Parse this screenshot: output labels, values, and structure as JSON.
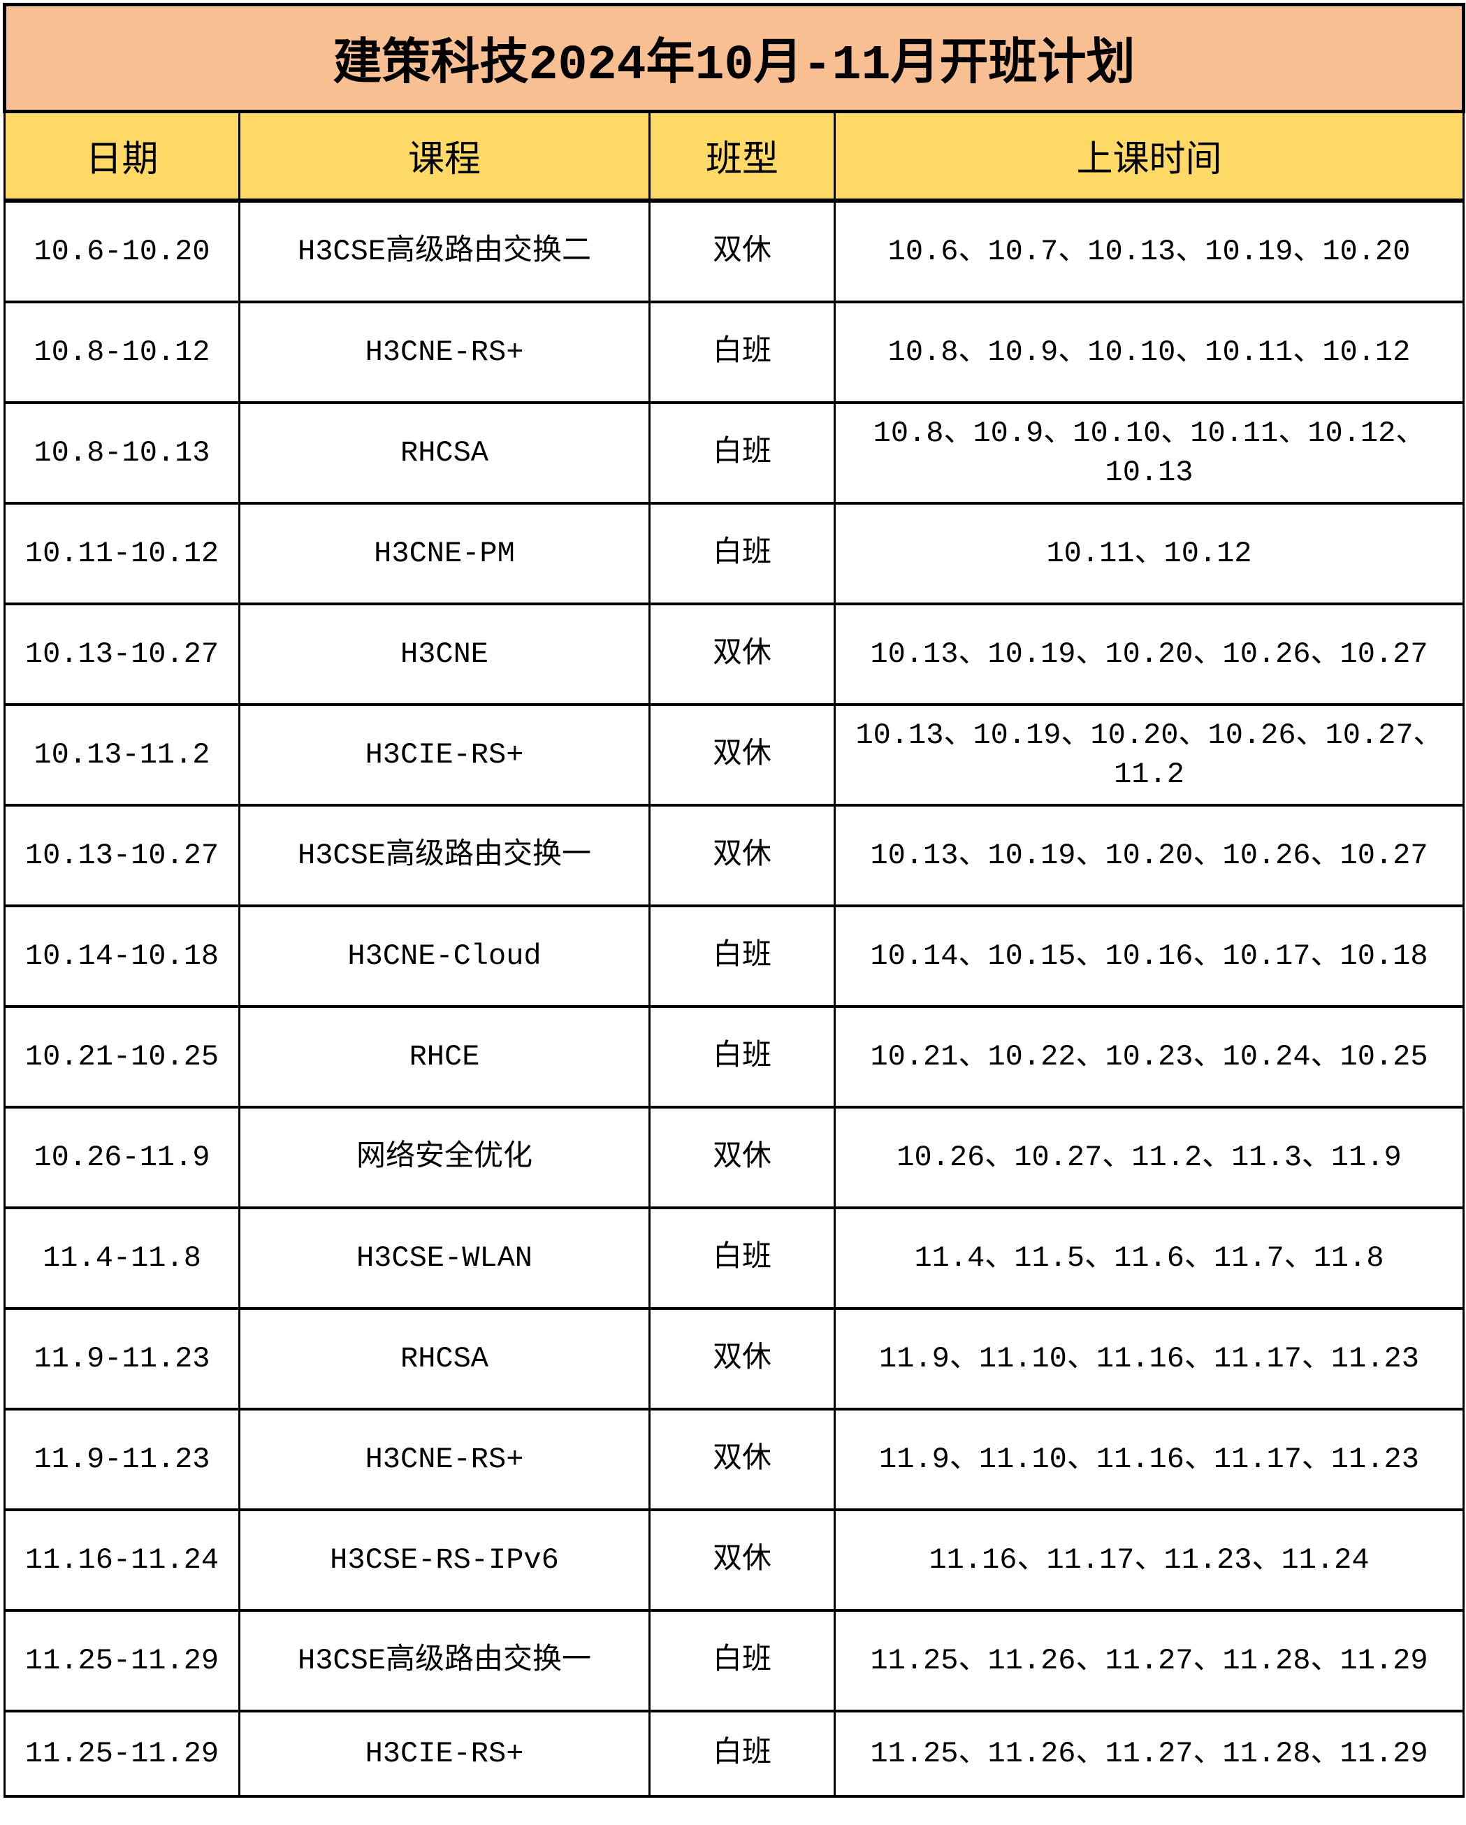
{
  "title": "建策科技2024年10月-11月开班计划",
  "colors": {
    "title_bg": "#F8BF93",
    "header_bg": "#FFD966"
  },
  "headers": [
    "日期",
    "课程",
    "班型",
    "上课时间"
  ],
  "rows": [
    [
      "10.6-10.20",
      "H3CSE高级路由交换二",
      "双休",
      "10.6、10.7、10.13、10.19、10.20"
    ],
    [
      "10.8-10.12",
      "H3CNE-RS+",
      "白班",
      "10.8、10.9、10.10、10.11、10.12"
    ],
    [
      "10.8-10.13",
      "RHCSA",
      "白班",
      "10.8、10.9、10.10、10.11、10.12、10.13"
    ],
    [
      "10.11-10.12",
      "H3CNE-PM",
      "白班",
      "10.11、10.12"
    ],
    [
      "10.13-10.27",
      "H3CNE",
      "双休",
      "10.13、10.19、10.20、10.26、10.27"
    ],
    [
      "10.13-11.2",
      "H3CIE-RS+",
      "双休",
      "10.13、10.19、10.20、10.26、10.27、11.2"
    ],
    [
      "10.13-10.27",
      "H3CSE高级路由交换一",
      "双休",
      "10.13、10.19、10.20、10.26、10.27"
    ],
    [
      "10.14-10.18",
      "H3CNE-Cloud",
      "白班",
      "10.14、10.15、10.16、10.17、10.18"
    ],
    [
      "10.21-10.25",
      "RHCE",
      "白班",
      "10.21、10.22、10.23、10.24、10.25"
    ],
    [
      "10.26-11.9",
      "网络安全优化",
      "双休",
      "10.26、10.27、11.2、11.3、11.9"
    ],
    [
      "11.4-11.8",
      "H3CSE-WLAN",
      "白班",
      "11.4、11.5、11.6、11.7、11.8"
    ],
    [
      "11.9-11.23",
      "RHCSA",
      "双休",
      "11.9、11.10、11.16、11.17、11.23"
    ],
    [
      "11.9-11.23",
      "H3CNE-RS+",
      "双休",
      "11.9、11.10、11.16、11.17、11.23"
    ],
    [
      "11.16-11.24",
      "H3CSE-RS-IPv6",
      "双休",
      "11.16、11.17、11.23、11.24"
    ],
    [
      "11.25-11.29",
      "H3CSE高级路由交换一",
      "白班",
      "11.25、11.26、11.27、11.28、11.29"
    ],
    [
      "11.25-11.29",
      "H3CIE-RS+",
      "白班",
      "11.25、11.26、11.27、11.28、11.29"
    ]
  ]
}
